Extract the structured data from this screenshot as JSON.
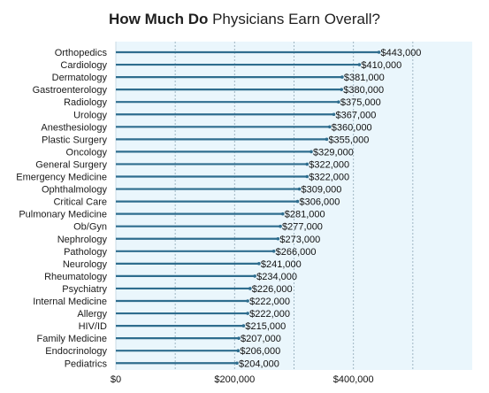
{
  "title_bold": "How Much Do",
  "title_rest": " Physicians Earn Overall?",
  "colors": {
    "bar": "#2e6d8e",
    "plot_bg": "#eaf6fc",
    "grid": "#9fb6c3",
    "marker": "#2e6d8e"
  },
  "chart_data": {
    "type": "bar",
    "orientation": "horizontal",
    "title": "How Much Do Physicians Earn Overall?",
    "categories": [
      "Orthopedics",
      "Cardiology",
      "Dermatology",
      "Gastroenterology",
      "Radiology",
      "Urology",
      "Anesthesiology",
      "Plastic Surgery",
      "Oncology",
      "General Surgery",
      "Emergency Medicine",
      "Ophthalmology",
      "Critical Care",
      "Pulmonary Medicine",
      "Ob/Gyn",
      "Nephrology",
      "Pathology",
      "Neurology",
      "Rheumatology",
      "Psychiatry",
      "Internal Medicine",
      "Allergy",
      "HIV/ID",
      "Family Medicine",
      "Endocrinology",
      "Pediatrics"
    ],
    "values": [
      443000,
      410000,
      381000,
      380000,
      375000,
      367000,
      360000,
      355000,
      329000,
      322000,
      322000,
      309000,
      306000,
      281000,
      277000,
      273000,
      266000,
      241000,
      234000,
      226000,
      222000,
      222000,
      215000,
      207000,
      206000,
      204000
    ],
    "value_labels": [
      "$443,000",
      "$410,000",
      "$381,000",
      "$380,000",
      "$375,000",
      "$367,000",
      "$360,000",
      "$355,000",
      "$329,000",
      "$322,000",
      "$322,000",
      "$309,000",
      "$306,000",
      "$281,000",
      "$277,000",
      "$273,000",
      "$266,000",
      "$241,000",
      "$234,000",
      "$226,000",
      "$222,000",
      "$222,000",
      "$215,000",
      "$207,000",
      "$206,000",
      "$204,000"
    ],
    "xlim": [
      0,
      600000
    ],
    "xticks": [
      0,
      200000,
      400000
    ],
    "xtick_labels": [
      "$0",
      "$200,000",
      "$400,000"
    ],
    "grid_x": [
      100000,
      200000,
      300000,
      400000,
      500000
    ],
    "legend": "none"
  }
}
